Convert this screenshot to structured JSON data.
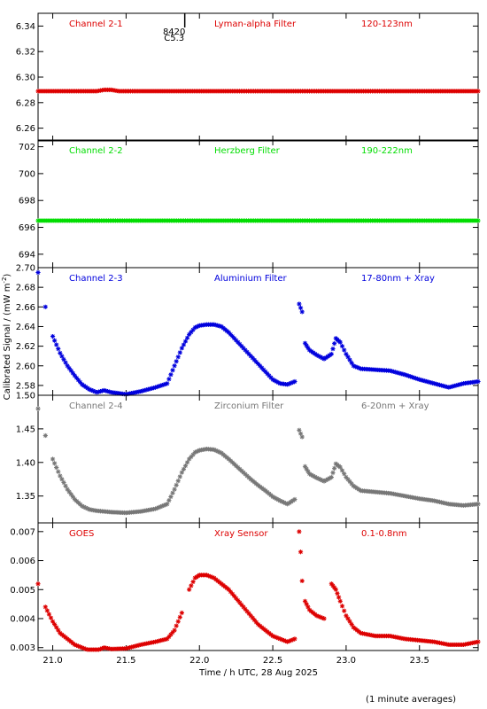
{
  "figure": {
    "ylabel": "Calibrated Signal / (mW m",
    "ylabel_sup": "-2",
    "ylabel_end": ")",
    "xlabel": "Time / h UTC, 28 Aug 2025",
    "footnote": "(1 minute averages)",
    "xlim": [
      20.9,
      23.9
    ],
    "xticks": [
      "21.0",
      "21.5",
      "22.0",
      "22.5",
      "23.0",
      "23.5"
    ],
    "flare_marker": {
      "x": 21.9,
      "label_top": "8420",
      "label_bottom": "C5.3"
    }
  },
  "chart_data": [
    {
      "type": "scatter",
      "panel": "Channel 2-1",
      "filter": "Lyman-alpha Filter",
      "band": "120-123nm",
      "color": "#dd0000",
      "ylim": [
        6.25,
        6.35
      ],
      "yticks": [
        "6.26",
        "6.28",
        "6.30",
        "6.32",
        "6.34"
      ],
      "x": [
        20.9,
        21.2,
        21.3,
        21.35,
        21.4,
        21.45,
        21.6,
        22.0,
        22.5,
        23.0,
        23.5,
        23.9
      ],
      "y": [
        6.289,
        6.289,
        6.289,
        6.29,
        6.29,
        6.289,
        6.289,
        6.289,
        6.289,
        6.289,
        6.289,
        6.289
      ]
    },
    {
      "type": "scatter",
      "panel": "Channel 2-2",
      "filter": "Herzberg Filter",
      "band": "190-222nm",
      "color": "#00dd00",
      "ylim": [
        693,
        702.5
      ],
      "yticks": [
        "694",
        "696",
        "698",
        "700",
        "702"
      ],
      "x": [
        20.9,
        21.5,
        22.0,
        22.5,
        23.0,
        23.5,
        23.9
      ],
      "y": [
        696.5,
        696.5,
        696.5,
        696.5,
        696.5,
        696.5,
        696.5
      ]
    },
    {
      "type": "scatter",
      "panel": "Channel 2-3",
      "filter": "Aluminium Filter",
      "band": "17-80nm + Xray",
      "color": "#0000dd",
      "ylim": [
        2.57,
        2.7
      ],
      "yticks": [
        "2.58",
        "2.60",
        "2.62",
        "2.64",
        "2.66",
        "2.68",
        "2.70"
      ],
      "x": [
        20.9,
        20.95,
        21.0,
        21.05,
        21.1,
        21.15,
        21.2,
        21.25,
        21.3,
        21.35,
        21.4,
        21.5,
        21.6,
        21.7,
        21.78,
        21.83,
        21.88,
        21.93,
        21.97,
        22.0,
        22.05,
        22.1,
        22.15,
        22.2,
        22.25,
        22.3,
        22.35,
        22.4,
        22.45,
        22.5,
        22.55,
        22.6,
        22.65,
        22.68,
        22.7,
        22.72,
        22.75,
        22.8,
        22.85,
        22.9,
        22.93,
        22.96,
        23.0,
        23.05,
        23.1,
        23.2,
        23.3,
        23.4,
        23.5,
        23.6,
        23.7,
        23.8,
        23.9
      ],
      "y": [
        2.695,
        2.66,
        2.63,
        2.613,
        2.6,
        2.59,
        2.581,
        2.576,
        2.573,
        2.575,
        2.573,
        2.571,
        2.574,
        2.578,
        2.582,
        2.6,
        2.618,
        2.632,
        2.639,
        2.641,
        2.642,
        2.642,
        2.64,
        2.634,
        2.626,
        2.618,
        2.61,
        2.602,
        2.594,
        2.586,
        2.582,
        2.581,
        2.584,
        2.663,
        2.655,
        2.623,
        2.616,
        2.611,
        2.607,
        2.612,
        2.628,
        2.624,
        2.612,
        2.6,
        2.597,
        2.596,
        2.595,
        2.591,
        2.586,
        2.582,
        2.578,
        2.582,
        2.584
      ]
    },
    {
      "type": "scatter",
      "panel": "Channel 2-4",
      "filter": "Zirconium Filter",
      "band": "6-20nm + Xray",
      "color": "#777777",
      "ylim": [
        1.31,
        1.5
      ],
      "yticks": [
        "1.35",
        "1.40",
        "1.45",
        "1.50"
      ],
      "x": [
        20.9,
        20.95,
        21.0,
        21.05,
        21.1,
        21.15,
        21.2,
        21.25,
        21.3,
        21.4,
        21.5,
        21.6,
        21.7,
        21.78,
        21.83,
        21.88,
        21.93,
        21.97,
        22.0,
        22.05,
        22.1,
        22.15,
        22.2,
        22.25,
        22.3,
        22.35,
        22.4,
        22.45,
        22.5,
        22.55,
        22.6,
        22.65,
        22.68,
        22.7,
        22.72,
        22.75,
        22.8,
        22.85,
        22.9,
        22.93,
        22.96,
        23.0,
        23.05,
        23.1,
        23.2,
        23.3,
        23.4,
        23.5,
        23.6,
        23.7,
        23.8,
        23.9
      ],
      "y": [
        1.48,
        1.44,
        1.405,
        1.38,
        1.36,
        1.345,
        1.335,
        1.33,
        1.328,
        1.326,
        1.325,
        1.327,
        1.331,
        1.338,
        1.36,
        1.385,
        1.405,
        1.415,
        1.418,
        1.42,
        1.419,
        1.414,
        1.405,
        1.395,
        1.385,
        1.375,
        1.366,
        1.358,
        1.349,
        1.343,
        1.338,
        1.345,
        1.448,
        1.438,
        1.394,
        1.383,
        1.377,
        1.372,
        1.378,
        1.398,
        1.393,
        1.378,
        1.365,
        1.358,
        1.356,
        1.354,
        1.35,
        1.346,
        1.343,
        1.338,
        1.336,
        1.338
      ]
    },
    {
      "type": "scatter",
      "panel": "GOES",
      "filter": "Xray Sensor",
      "band": "0.1-0.8nm",
      "color": "#dd0000",
      "ylim": [
        0.0029,
        0.0073
      ],
      "yticks": [
        "0.003",
        "0.004",
        "0.005",
        "0.006",
        "0.007"
      ],
      "x": [
        20.9,
        20.95,
        21.0,
        21.05,
        21.1,
        21.15,
        21.2,
        21.25,
        21.3,
        21.35,
        21.4,
        21.5,
        21.6,
        21.7,
        21.78,
        21.83,
        21.88,
        21.93,
        21.97,
        22.0,
        22.05,
        22.1,
        22.15,
        22.2,
        22.25,
        22.3,
        22.35,
        22.4,
        22.45,
        22.5,
        22.55,
        22.6,
        22.65,
        22.68,
        22.69,
        22.7,
        22.72,
        22.75,
        22.8,
        22.85,
        22.9,
        22.93,
        22.96,
        23.0,
        23.05,
        23.1,
        23.2,
        23.3,
        23.4,
        23.5,
        23.6,
        23.7,
        23.8,
        23.9
      ],
      "y": [
        0.0052,
        0.0044,
        0.0039,
        0.0035,
        0.0033,
        0.0031,
        0.003,
        0.0029,
        0.0029,
        0.003,
        0.00295,
        0.00297,
        0.0031,
        0.0032,
        0.0033,
        0.0036,
        0.0042,
        0.005,
        0.0054,
        0.0055,
        0.0055,
        0.0054,
        0.0052,
        0.005,
        0.0047,
        0.0044,
        0.0041,
        0.0038,
        0.0036,
        0.0034,
        0.0033,
        0.0032,
        0.0033,
        0.007,
        0.0063,
        0.0053,
        0.0046,
        0.0043,
        0.0041,
        0.004,
        0.0052,
        0.005,
        0.0046,
        0.0041,
        0.0037,
        0.0035,
        0.0034,
        0.0034,
        0.0033,
        0.00325,
        0.0032,
        0.0031,
        0.0031,
        0.0032
      ]
    }
  ]
}
